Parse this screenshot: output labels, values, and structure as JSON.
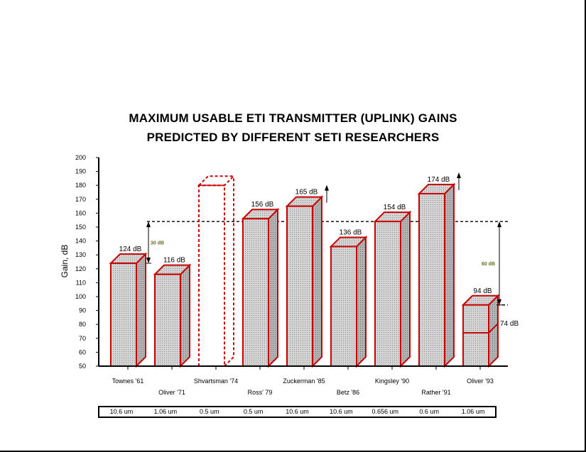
{
  "title_line1": "MAXIMUM USABLE ETI TRANSMITTER (UPLINK) GAINS",
  "title_line2": "PREDICTED BY DIFFERENT SETI RESEARCHERS",
  "colors": {
    "bar_edge": "#c80000",
    "bar_fill": "#c6c6c6",
    "annotation": "#6b6b2a"
  },
  "chart_data": {
    "type": "bar",
    "ylabel": "Gain, dB",
    "xlabel": "",
    "ylim": [
      50,
      200
    ],
    "yticks": [
      50,
      60,
      70,
      80,
      90,
      100,
      110,
      120,
      130,
      140,
      150,
      160,
      170,
      180,
      190,
      200
    ],
    "categories": [
      "Townes '61",
      "Oliver '71",
      "Shvartsman '74",
      "Ross' 79",
      "Zuckerman '85",
      "Betz '86",
      "Kingsley '90",
      "Rather '91",
      "Oliver '93"
    ],
    "values": [
      124,
      116,
      180,
      156,
      165,
      136,
      154,
      174,
      94
    ],
    "data_labels": [
      "124 dB",
      "116 dB",
      "",
      "156 dB",
      "165 dB",
      "136 dB",
      "154 dB",
      "174 dB",
      "94 dB"
    ],
    "dashed_bar": "Shvartsman '74",
    "upward_arrows": [
      "Zuckerman '85",
      "Rather '91"
    ],
    "secondary_segment": {
      "category": "Oliver '93",
      "value": 74,
      "label": "74 dB"
    },
    "reference_lines": [
      154,
      94
    ],
    "range_annotations": [
      {
        "label": "30 dB",
        "from": 124,
        "to": 154
      },
      {
        "label": "60 dB",
        "from": 94,
        "to": 154
      }
    ],
    "wavelengths": [
      "10.6 um",
      "1.06 um",
      "0.5 um",
      "0.5 um",
      "10.6 um",
      "10.6 um",
      "0.656 um",
      "0.6 um",
      "1.06 um"
    ]
  }
}
